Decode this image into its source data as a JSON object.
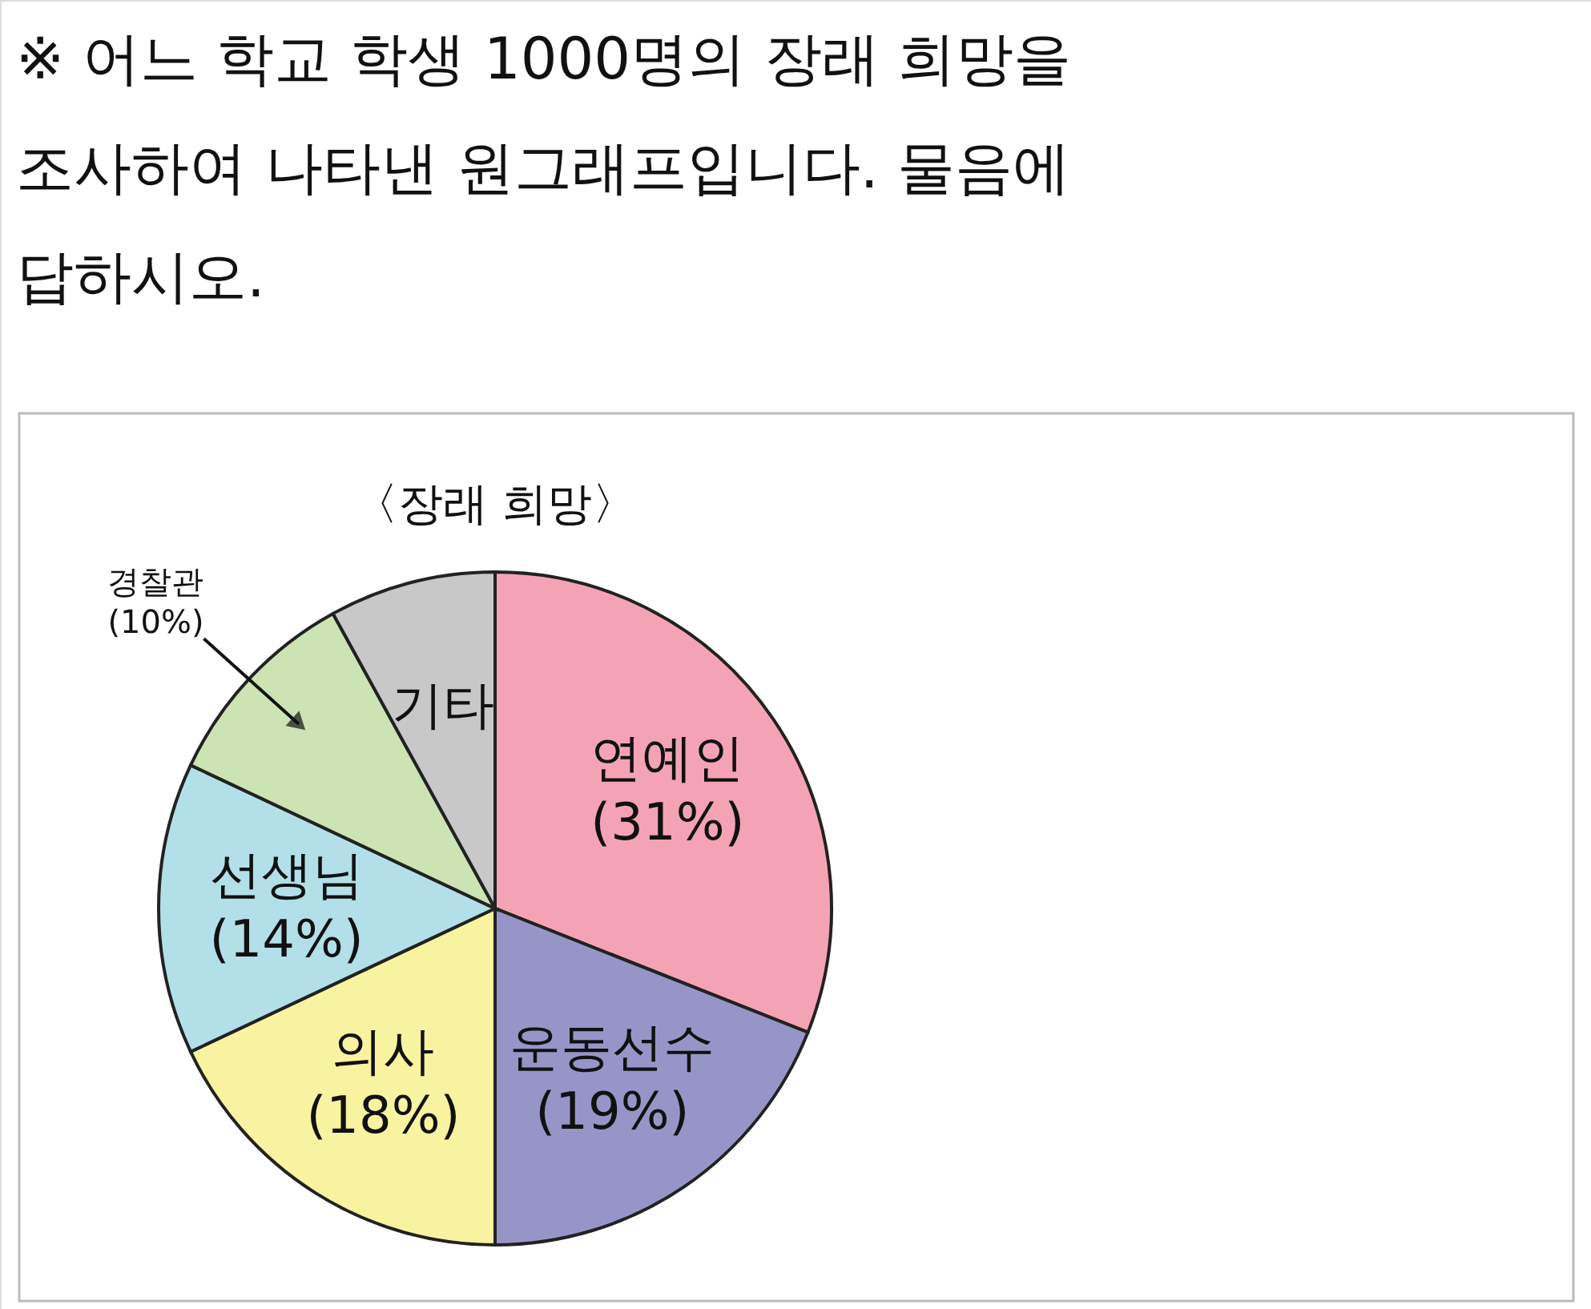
{
  "chart_data": {
    "type": "pie",
    "title": "※ 어느 학교 학생 1000명의 장래 희망을 조사하여 나타낸 원그래프입니다. 물음에 답하시오.",
    "subtitle": "〈장래 희망〉",
    "categories": [
      "연예인",
      "운동선수",
      "의사",
      "선생님",
      "경찰관",
      "기타"
    ],
    "values": [
      31,
      19,
      18,
      14,
      10,
      8
    ],
    "value_labels": [
      "(31%)",
      "(19%)",
      "(18%)",
      "(14%)",
      "(10%)",
      null
    ],
    "colors": [
      "#f4a3b5",
      "#9795c8",
      "#f8f3a0",
      "#b3e0e8",
      "#cce3b3",
      "#c8c8c8"
    ]
  }
}
